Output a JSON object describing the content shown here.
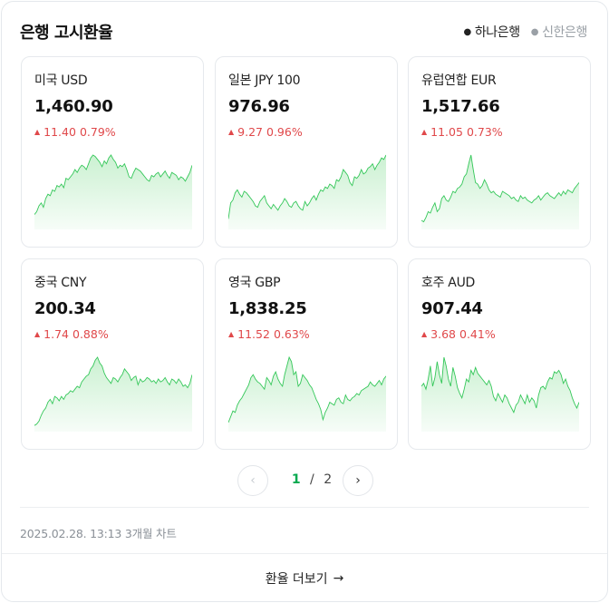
{
  "widget": {
    "title": "은행 고시환율",
    "tabs": [
      {
        "label": "하나은행",
        "active": true
      },
      {
        "label": "신한은행",
        "active": false
      }
    ]
  },
  "colors": {
    "up": "#e0484a",
    "chart_line": "#34c759",
    "chart_fill": "#c8f0cf",
    "pager_current": "#03a94f"
  },
  "cards": [
    {
      "name": "미국 USD",
      "rate": "1,460.90",
      "change": "11.40",
      "pct": "0.79%",
      "direction": "up",
      "spark": [
        18,
        22,
        30,
        34,
        28,
        40,
        46,
        44,
        52,
        50,
        58,
        56,
        60,
        55,
        68,
        66,
        70,
        74,
        80,
        76,
        82,
        86,
        84,
        80,
        88,
        96,
        100,
        98,
        94,
        90,
        84,
        92,
        88,
        96,
        100,
        94,
        90,
        82,
        86,
        84,
        88,
        80,
        70,
        68,
        76,
        82,
        80,
        78,
        74,
        70,
        66,
        64,
        72,
        70,
        74,
        76,
        70,
        74,
        78,
        72,
        68,
        76,
        74,
        72,
        66,
        70,
        68,
        64,
        70,
        76,
        86
      ]
    },
    {
      "name": "일본 JPY 100",
      "rate": "976.96",
      "change": "9.27",
      "pct": "0.96%",
      "direction": "up",
      "spark": [
        12,
        34,
        38,
        48,
        52,
        46,
        42,
        50,
        48,
        44,
        40,
        36,
        30,
        28,
        36,
        40,
        44,
        34,
        30,
        26,
        32,
        28,
        24,
        30,
        34,
        40,
        36,
        30,
        28,
        34,
        36,
        30,
        26,
        24,
        36,
        30,
        34,
        40,
        44,
        38,
        46,
        52,
        50,
        56,
        54,
        60,
        58,
        54,
        66,
        64,
        70,
        80,
        76,
        72,
        62,
        58,
        70,
        68,
        72,
        80,
        74,
        76,
        82,
        84,
        88,
        80,
        86,
        90,
        96,
        94,
        100
      ]
    },
    {
      "name": "유럽연합 EUR",
      "rate": "1,517.66",
      "change": "11.05",
      "pct": "0.73%",
      "direction": "up",
      "spark": [
        10,
        8,
        14,
        22,
        20,
        28,
        34,
        22,
        26,
        40,
        44,
        38,
        36,
        42,
        50,
        48,
        54,
        56,
        60,
        70,
        74,
        88,
        100,
        80,
        62,
        60,
        54,
        58,
        66,
        60,
        52,
        48,
        50,
        46,
        44,
        42,
        50,
        48,
        46,
        44,
        40,
        42,
        38,
        36,
        44,
        40,
        42,
        38,
        36,
        34,
        38,
        40,
        44,
        38,
        42,
        46,
        48,
        44,
        42,
        40,
        44,
        48,
        44,
        50,
        46,
        52,
        50,
        48,
        54,
        58,
        62
      ]
    },
    {
      "name": "중국 CNY",
      "rate": "200.34",
      "change": "1.74",
      "pct": "0.88%",
      "direction": "up",
      "spark": [
        6,
        8,
        12,
        20,
        26,
        30,
        38,
        42,
        36,
        46,
        44,
        40,
        46,
        42,
        48,
        50,
        54,
        52,
        56,
        60,
        58,
        66,
        70,
        74,
        76,
        84,
        88,
        96,
        100,
        92,
        88,
        78,
        72,
        68,
        64,
        72,
        70,
        66,
        72,
        76,
        84,
        80,
        76,
        68,
        72,
        74,
        62,
        70,
        66,
        68,
        72,
        70,
        66,
        68,
        64,
        70,
        66,
        68,
        72,
        66,
        62,
        70,
        68,
        64,
        70,
        66,
        60,
        62,
        58,
        64,
        76
      ]
    },
    {
      "name": "영국 GBP",
      "rate": "1,838.25",
      "change": "11.52",
      "pct": "0.63%",
      "direction": "up",
      "spark": [
        10,
        18,
        26,
        24,
        34,
        40,
        44,
        50,
        56,
        62,
        72,
        76,
        70,
        66,
        64,
        60,
        56,
        72,
        68,
        62,
        74,
        80,
        70,
        64,
        60,
        76,
        88,
        100,
        94,
        76,
        80,
        60,
        64,
        76,
        72,
        68,
        62,
        58,
        50,
        42,
        36,
        28,
        14,
        24,
        30,
        38,
        36,
        34,
        42,
        44,
        38,
        36,
        48,
        42,
        40,
        44,
        46,
        50,
        48,
        54,
        56,
        58,
        60,
        66,
        62,
        60,
        64,
        68,
        62,
        70,
        74
      ]
    },
    {
      "name": "호주 AUD",
      "rate": "907.44",
      "change": "3.68",
      "pct": "0.41%",
      "direction": "up",
      "spark": [
        60,
        64,
        56,
        70,
        88,
        60,
        72,
        94,
        76,
        64,
        100,
        88,
        70,
        60,
        86,
        74,
        58,
        50,
        44,
        56,
        70,
        66,
        82,
        76,
        86,
        78,
        74,
        70,
        66,
        62,
        68,
        60,
        46,
        40,
        50,
        44,
        38,
        48,
        44,
        36,
        30,
        24,
        34,
        38,
        48,
        42,
        36,
        48,
        38,
        44,
        40,
        30,
        48,
        58,
        60,
        56,
        66,
        72,
        70,
        80,
        78,
        82,
        76,
        64,
        70,
        60,
        54,
        44,
        36,
        30,
        38
      ]
    }
  ],
  "pagination": {
    "current": "1",
    "separator": "/",
    "total": "2"
  },
  "timestamp": "2025.02.28. 13:13 3개월 차트",
  "more_link": {
    "label": "환율 더보기",
    "arrow": "→"
  }
}
